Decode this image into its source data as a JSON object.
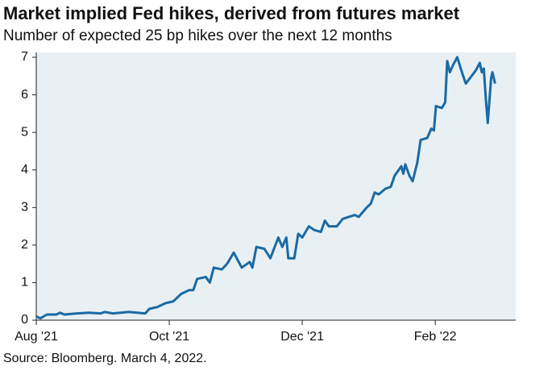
{
  "chart_data": {
    "type": "line",
    "title": "Market implied Fed hikes, derived from futures market",
    "subtitle": "Number of expected 25 bp hikes over the next 12 months",
    "source": "Source: Bloomberg. March 4, 2022.",
    "x": [
      0,
      0.06,
      0.16,
      0.3,
      0.36,
      0.42,
      0.61,
      0.79,
      0.97,
      1.03,
      1.15,
      1.27,
      1.39,
      1.52,
      1.64,
      1.7,
      1.82,
      1.94,
      2.06,
      2.18,
      2.3,
      2.36,
      2.42,
      2.55,
      2.61,
      2.67,
      2.79,
      2.87,
      2.97,
      3.03,
      3.09,
      3.21,
      3.25,
      3.31,
      3.43,
      3.52,
      3.64,
      3.7,
      3.76,
      3.79,
      3.88,
      3.94,
      4.0,
      4.1,
      4.18,
      4.28,
      4.34,
      4.4,
      4.52,
      4.61,
      4.79,
      4.85,
      4.97,
      5.03,
      5.09,
      5.15,
      5.25,
      5.33,
      5.39,
      5.49,
      5.52,
      5.55,
      5.61,
      5.66,
      5.73,
      5.78,
      5.88,
      5.94,
      5.98,
      6.01,
      6.1,
      6.15,
      6.18,
      6.22,
      6.27,
      6.33,
      6.42,
      6.46,
      6.61,
      6.67,
      6.7,
      6.73,
      6.76,
      6.79,
      6.84,
      6.86,
      6.9
    ],
    "series": [
      {
        "name": "Expected hikes",
        "color": "#1a6aa3",
        "values": [
          0.1,
          0.05,
          0.15,
          0.15,
          0.2,
          0.15,
          0.18,
          0.2,
          0.18,
          0.22,
          0.18,
          0.2,
          0.22,
          0.2,
          0.18,
          0.3,
          0.35,
          0.45,
          0.5,
          0.7,
          0.8,
          0.8,
          1.1,
          1.15,
          1.0,
          1.4,
          1.35,
          1.5,
          1.8,
          1.6,
          1.4,
          1.55,
          1.4,
          1.95,
          1.9,
          1.65,
          2.2,
          1.95,
          2.2,
          1.65,
          1.65,
          2.3,
          2.2,
          2.5,
          2.4,
          2.35,
          2.65,
          2.5,
          2.5,
          2.7,
          2.8,
          2.75,
          3.0,
          3.1,
          3.4,
          3.35,
          3.5,
          3.55,
          3.85,
          4.1,
          3.9,
          4.15,
          3.85,
          3.7,
          4.2,
          4.8,
          4.85,
          5.1,
          5.05,
          5.7,
          5.65,
          5.8,
          6.9,
          6.6,
          6.8,
          7.0,
          6.5,
          6.3,
          6.65,
          6.85,
          6.6,
          6.7,
          5.9,
          5.25,
          6.45,
          6.6,
          6.3
        ]
      }
    ],
    "xlim": [
      0,
      7.21
    ],
    "xticks": [
      {
        "value": 0,
        "label": "Aug '21"
      },
      {
        "value": 2,
        "label": "Oct '21"
      },
      {
        "value": 4,
        "label": "Dec '21"
      },
      {
        "value": 6,
        "label": "Feb '22"
      }
    ],
    "ylim": [
      0,
      7
    ],
    "yticks": [
      0,
      1,
      2,
      3,
      4,
      5,
      6,
      7
    ],
    "background": "#e8f0f4"
  }
}
